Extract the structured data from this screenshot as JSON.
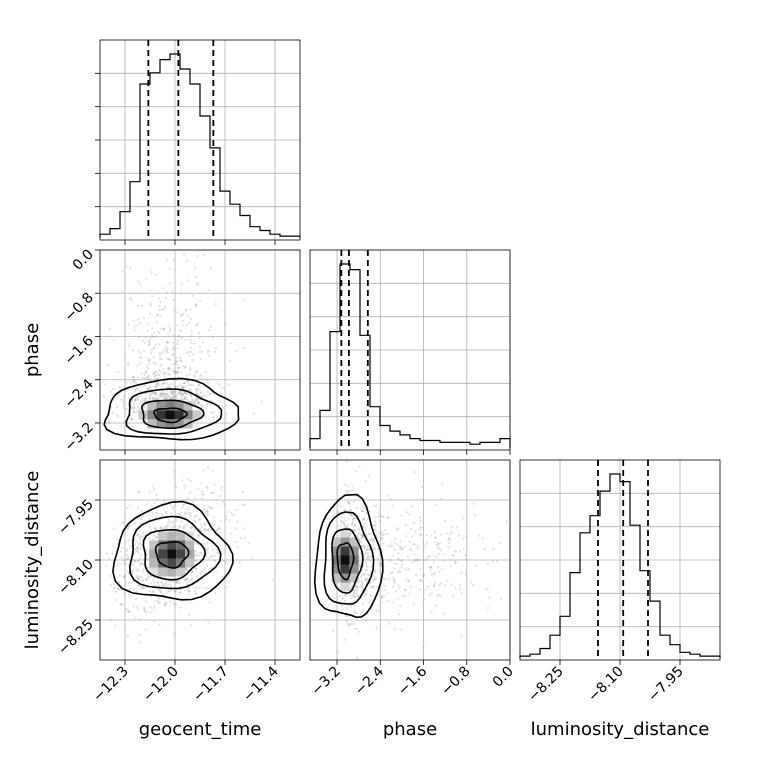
{
  "chart_data": {
    "type": "corner",
    "parameters": [
      "geocent_time",
      "phase",
      "luminosity_distance"
    ],
    "axes": {
      "geocent_time": {
        "range": [
          -12.45,
          -11.25
        ],
        "ticks": [
          -12.3,
          -12.0,
          -11.7,
          -11.4
        ],
        "tick_labels": [
          "−12.3",
          "−12.0",
          "−11.7",
          "−11.4"
        ]
      },
      "phase": {
        "range": [
          -3.7,
          0.0
        ],
        "ticks": [
          -3.2,
          -2.4,
          -1.6,
          -0.8,
          0.0
        ],
        "tick_labels": [
          "−3.2",
          "−2.4",
          "−1.6",
          "−0.8",
          "0.0"
        ]
      },
      "luminosity_distance": {
        "range": [
          -8.35,
          -7.85
        ],
        "ticks": [
          -8.25,
          -8.1,
          -7.95
        ],
        "tick_labels": [
          "−8.25",
          "−8.10",
          "−7.95"
        ]
      }
    },
    "quantiles": {
      "geocent_time": [
        -12.16,
        -11.98,
        -11.77
      ],
      "phase": [
        -3.12,
        -2.98,
        -2.63
      ],
      "luminosity_distance": [
        -8.155,
        -8.092,
        -8.03
      ]
    },
    "histograms": {
      "geocent_time": {
        "edges_start": -12.45,
        "bin_width": 0.06,
        "counts": [
          2,
          5,
          14,
          30,
          82,
          88,
          95,
          98,
          90,
          82,
          65,
          48,
          25,
          18,
          12,
          6,
          4,
          2,
          1,
          1
        ]
      },
      "phase": {
        "edges_start": -3.7,
        "bin_width": 0.185,
        "counts": [
          5,
          20,
          62,
          98,
          95,
          60,
          22,
          12,
          9,
          7,
          5,
          4,
          4,
          3,
          3,
          3,
          2,
          3,
          3,
          5
        ]
      },
      "luminosity_distance": {
        "edges_start": -8.35,
        "bin_width": 0.025,
        "counts": [
          1,
          2,
          5,
          12,
          22,
          45,
          66,
          75,
          88,
          97,
          93,
          70,
          46,
          30,
          12,
          7,
          3,
          2,
          1,
          1
        ]
      }
    },
    "density_centers": {
      "geocent_time_vs_phase": [
        -12.03,
        -3.05
      ],
      "geocent_time_vs_luminosity_distance": [
        -12.02,
        -8.085
      ],
      "phase_vs_luminosity_distance": [
        -3.05,
        -8.1
      ]
    },
    "grid": true
  }
}
